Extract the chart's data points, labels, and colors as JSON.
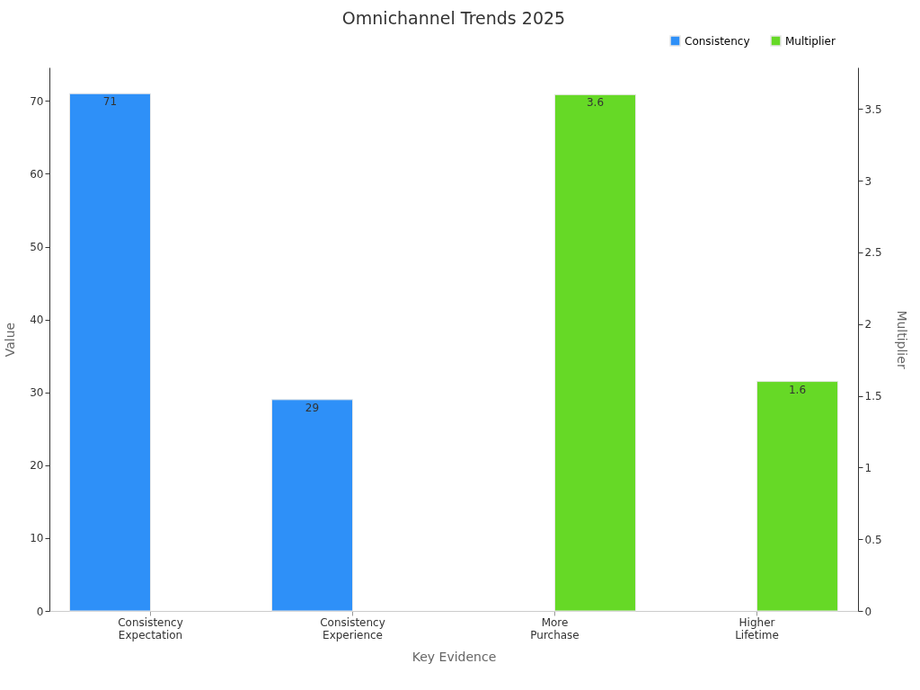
{
  "chart_data": {
    "type": "bar",
    "title": "Omnichannel Trends 2025",
    "xlabel": "Key Evidence",
    "ylabel": "Value",
    "y2label": "Multiplier",
    "categories": [
      "Consistency Expectation",
      "Consistency Experience",
      "More Purchase",
      "Higher Lifetime"
    ],
    "series": [
      {
        "name": "Consistency",
        "color": "#2e90f8",
        "values": [
          71,
          29,
          null,
          null
        ]
      },
      {
        "name": "Multiplier",
        "color": "#66d926",
        "axis": "y2",
        "values": [
          null,
          null,
          3.6,
          1.6
        ]
      }
    ],
    "ylim": [
      0,
      74.6
    ],
    "yticks": [
      0,
      10,
      20,
      30,
      40,
      50,
      60,
      70
    ],
    "y2lim": [
      0,
      3.79
    ],
    "y2ticks": [
      0,
      0.5,
      1,
      1.5,
      2,
      2.5,
      3,
      3.5
    ],
    "data_labels": true,
    "legend": "top right"
  }
}
